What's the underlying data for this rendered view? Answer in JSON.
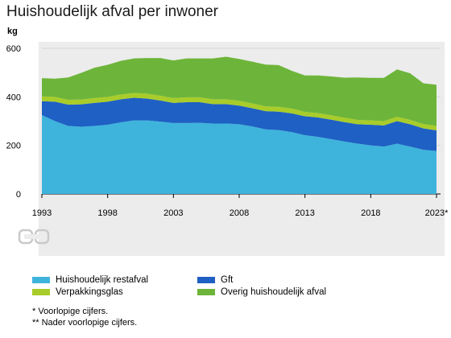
{
  "header": {
    "title": "Huishoudelijk afval per inwoner",
    "unit": "kg"
  },
  "chart_data": {
    "type": "area",
    "stacked": true,
    "title": "Huishoudelijk afval per inwoner",
    "ylabel": "kg",
    "ylim": [
      0,
      600
    ],
    "yticks": [
      0,
      200,
      400,
      600
    ],
    "x": [
      1993,
      1994,
      1995,
      1996,
      1997,
      1998,
      1999,
      2000,
      2001,
      2002,
      2003,
      2004,
      2005,
      2006,
      2007,
      2008,
      2009,
      2010,
      2011,
      2012,
      2013,
      2014,
      2015,
      2016,
      2017,
      2018,
      2019,
      2020,
      2021,
      2022,
      2023
    ],
    "xtick_labels": [
      "1993",
      "1998",
      "2003",
      "2008",
      "2013",
      "2018",
      "2023*"
    ],
    "xtick_values": [
      1993,
      1998,
      2003,
      2008,
      2013,
      2018,
      2023
    ],
    "grid": true,
    "legend_position": "bottom",
    "series": [
      {
        "name": "Huishoudelijk restafval",
        "color": "#3eb4dc",
        "values": [
          325,
          300,
          280,
          277,
          280,
          285,
          295,
          303,
          303,
          298,
          292,
          292,
          293,
          290,
          290,
          287,
          278,
          266,
          263,
          255,
          242,
          235,
          226,
          216,
          207,
          200,
          195,
          207,
          195,
          182,
          177
        ]
      },
      {
        "name": "Gft",
        "color": "#1f60c4",
        "values": [
          57,
          80,
          88,
          92,
          95,
          95,
          95,
          93,
          90,
          87,
          83,
          86,
          85,
          80,
          80,
          77,
          75,
          75,
          76,
          77,
          78,
          80,
          80,
          80,
          80,
          85,
          87,
          93,
          92,
          88,
          85
        ]
      },
      {
        "name": "Verpakkingsglas",
        "color": "#a8cc2a",
        "values": [
          20,
          20,
          20,
          20,
          20,
          20,
          20,
          20,
          20,
          20,
          20,
          20,
          20,
          20,
          20,
          20,
          20,
          20,
          20,
          20,
          18,
          18,
          18,
          18,
          18,
          18,
          18,
          18,
          18,
          18,
          18
        ]
      },
      {
        "name": "Overig huishoudelijk afval",
        "color": "#6db53a",
        "values": [
          75,
          75,
          92,
          110,
          125,
          132,
          138,
          142,
          147,
          155,
          155,
          160,
          160,
          168,
          175,
          172,
          172,
          172,
          172,
          155,
          150,
          155,
          160,
          165,
          175,
          175,
          178,
          195,
          192,
          168,
          170
        ]
      }
    ]
  },
  "logo": {
    "name": "cbs"
  },
  "footnotes": {
    "note1": "* Voorlopige cijfers.",
    "note2": "** Nader voorlopige cijfers."
  }
}
